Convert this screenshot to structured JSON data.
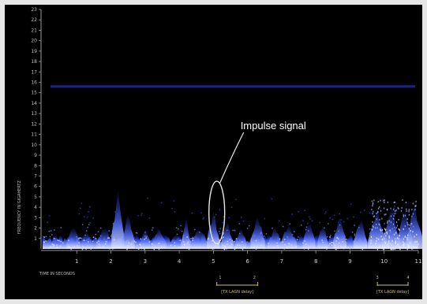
{
  "chart_data": {
    "type": "heatmap",
    "title": "",
    "ylabel": "FREQUENCY IN GIGAHERTZ",
    "xlabel": "TIME IN SECONDS",
    "y_ticks": [
      "1",
      "2",
      "3",
      "4",
      "5",
      "6",
      "7",
      "8",
      "9",
      "10",
      "11",
      "12",
      "13",
      "14",
      "15",
      "16",
      "17",
      "18",
      "19",
      "20",
      "21",
      "22",
      "23"
    ],
    "x_ticks": [
      "1",
      "2",
      "3",
      "4",
      "5",
      "6",
      "7",
      "8",
      "9",
      "10",
      "11"
    ],
    "ylim": [
      0,
      23
    ],
    "xlim": [
      0,
      11
    ],
    "colors": {
      "background": "#000000",
      "signal": "#2a4cf0",
      "peak": "#e8ecff",
      "axis": "#bdbdbd",
      "annotation_note": "#c9c26a"
    },
    "annotation": {
      "text": "Impulse signal",
      "x": 5.1,
      "y_low": 0.5,
      "y_high": 6.5
    },
    "bracket_notes": [
      {
        "text": "[TX LAGN delay]",
        "x_from": 5.1,
        "x_to": 6.3
      },
      {
        "text": "[TX LAGN delay]",
        "x_from": 9.8,
        "x_to": 10.7
      }
    ],
    "bracket_tick_labels": [
      "1",
      "2",
      "3",
      "4"
    ],
    "noise_band": {
      "y": 15.6
    },
    "spikes": [
      {
        "x": 0.4,
        "y": 1.6
      },
      {
        "x": 0.9,
        "y": 2.4
      },
      {
        "x": 1.3,
        "y": 2.0
      },
      {
        "x": 1.8,
        "y": 2.6
      },
      {
        "x": 2.2,
        "y": 6.0
      },
      {
        "x": 2.5,
        "y": 3.5
      },
      {
        "x": 3.0,
        "y": 2.5
      },
      {
        "x": 3.4,
        "y": 2.4
      },
      {
        "x": 3.9,
        "y": 2.0
      },
      {
        "x": 4.2,
        "y": 3.0
      },
      {
        "x": 4.6,
        "y": 2.4
      },
      {
        "x": 5.0,
        "y": 4.0
      },
      {
        "x": 5.4,
        "y": 3.0
      },
      {
        "x": 5.8,
        "y": 2.6
      },
      {
        "x": 6.3,
        "y": 3.6
      },
      {
        "x": 6.8,
        "y": 2.5
      },
      {
        "x": 7.2,
        "y": 2.8
      },
      {
        "x": 7.8,
        "y": 3.2
      },
      {
        "x": 8.2,
        "y": 2.8
      },
      {
        "x": 8.7,
        "y": 3.5
      },
      {
        "x": 9.3,
        "y": 3.5
      },
      {
        "x": 9.8,
        "y": 4.2
      },
      {
        "x": 10.2,
        "y": 4.8
      },
      {
        "x": 10.6,
        "y": 5.0
      },
      {
        "x": 10.9,
        "y": 4.8
      }
    ]
  }
}
